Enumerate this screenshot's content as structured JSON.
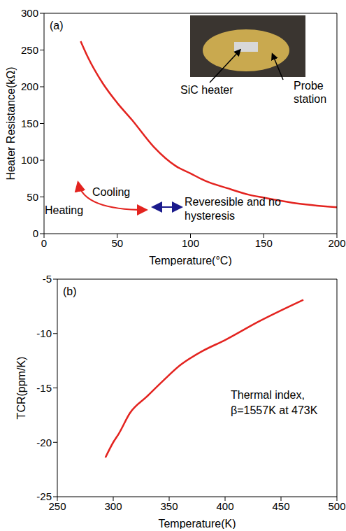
{
  "chart_data": [
    {
      "type": "line",
      "panel_label": "(a)",
      "x_label": "Temperature(°C)",
      "y_label": "Heater Resistance(kΩ)",
      "x": [
        25,
        30,
        40,
        50,
        60,
        75,
        90,
        100,
        110,
        125,
        140,
        150,
        170,
        200
      ],
      "series": [
        {
          "name": "Heater Resistance",
          "color": "#e3231f",
          "values": [
            262,
            240,
            205,
            178,
            155,
            118,
            92,
            82,
            72,
            62,
            53,
            49,
            42,
            36
          ]
        }
      ],
      "xlim": [
        0,
        200
      ],
      "xticks": [
        0,
        50,
        100,
        150,
        200
      ],
      "ylim": [
        0,
        300
      ],
      "yticks": [
        0,
        50,
        100,
        150,
        200,
        250,
        300
      ],
      "grid": false,
      "annotations": [
        "Cooling",
        "Heating",
        "Reveresible and no",
        "hysteresis"
      ],
      "inset_labels": [
        "SiC heater",
        "Probe station"
      ]
    },
    {
      "type": "line",
      "panel_label": "(b)",
      "x_label": "Temperature(K)",
      "y_label": "TCR(ppm/K)",
      "x": [
        293,
        300,
        305,
        315,
        330,
        345,
        360,
        380,
        400,
        430,
        470
      ],
      "series": [
        {
          "name": "TCR",
          "color": "#e3231f",
          "values": [
            -21.4,
            -20,
            -19.2,
            -17.3,
            -15.8,
            -14.3,
            -12.9,
            -11.6,
            -10.6,
            -8.9,
            -6.9
          ]
        }
      ],
      "xlim": [
        250,
        500
      ],
      "xticks": [
        250,
        300,
        350,
        400,
        450,
        500
      ],
      "ylim": [
        -25,
        -5
      ],
      "yticks": [
        -25,
        -20,
        -15,
        -10,
        -5
      ],
      "grid": false,
      "annotations": [
        "Thermal index,",
        "β=1557K at 473K"
      ]
    }
  ]
}
